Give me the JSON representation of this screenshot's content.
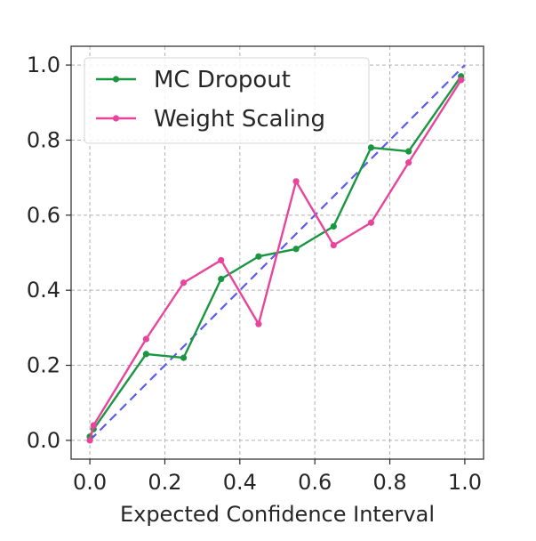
{
  "chart_data": {
    "type": "line",
    "title": "",
    "xlabel": "Expected Confidence Interval",
    "ylabel": "",
    "xlim": [
      -0.05,
      1.05
    ],
    "ylim": [
      -0.05,
      1.05
    ],
    "xticks": [
      0.0,
      0.2,
      0.4,
      0.6,
      0.8,
      1.0
    ],
    "yticks": [
      0.0,
      0.2,
      0.4,
      0.6,
      0.8,
      1.0
    ],
    "xtick_labels": [
      "0.0",
      "0.2",
      "0.4",
      "0.6",
      "0.8",
      "1.0"
    ],
    "ytick_labels": [
      "0.0",
      "0.2",
      "0.4",
      "0.6",
      "0.8",
      "1.0"
    ],
    "grid": true,
    "legend_position": "top-left",
    "series": [
      {
        "name": "MC Dropout",
        "color": "#1a9641",
        "x": [
          0.0,
          0.01,
          0.15,
          0.25,
          0.35,
          0.45,
          0.55,
          0.65,
          0.75,
          0.85,
          0.99
        ],
        "y": [
          0.01,
          0.03,
          0.23,
          0.22,
          0.43,
          0.49,
          0.51,
          0.57,
          0.78,
          0.77,
          0.97
        ]
      },
      {
        "name": "Weight Scaling",
        "color": "#e8449c",
        "x": [
          0.0,
          0.01,
          0.15,
          0.25,
          0.35,
          0.45,
          0.55,
          0.65,
          0.75,
          0.85,
          0.99
        ],
        "y": [
          0.0,
          0.04,
          0.27,
          0.42,
          0.48,
          0.31,
          0.69,
          0.52,
          0.58,
          0.74,
          0.96
        ]
      }
    ],
    "reference_line": {
      "style": "dashed",
      "color": "#5b5bf0",
      "x": [
        0.0,
        1.0
      ],
      "y": [
        0.0,
        1.0
      ]
    }
  }
}
